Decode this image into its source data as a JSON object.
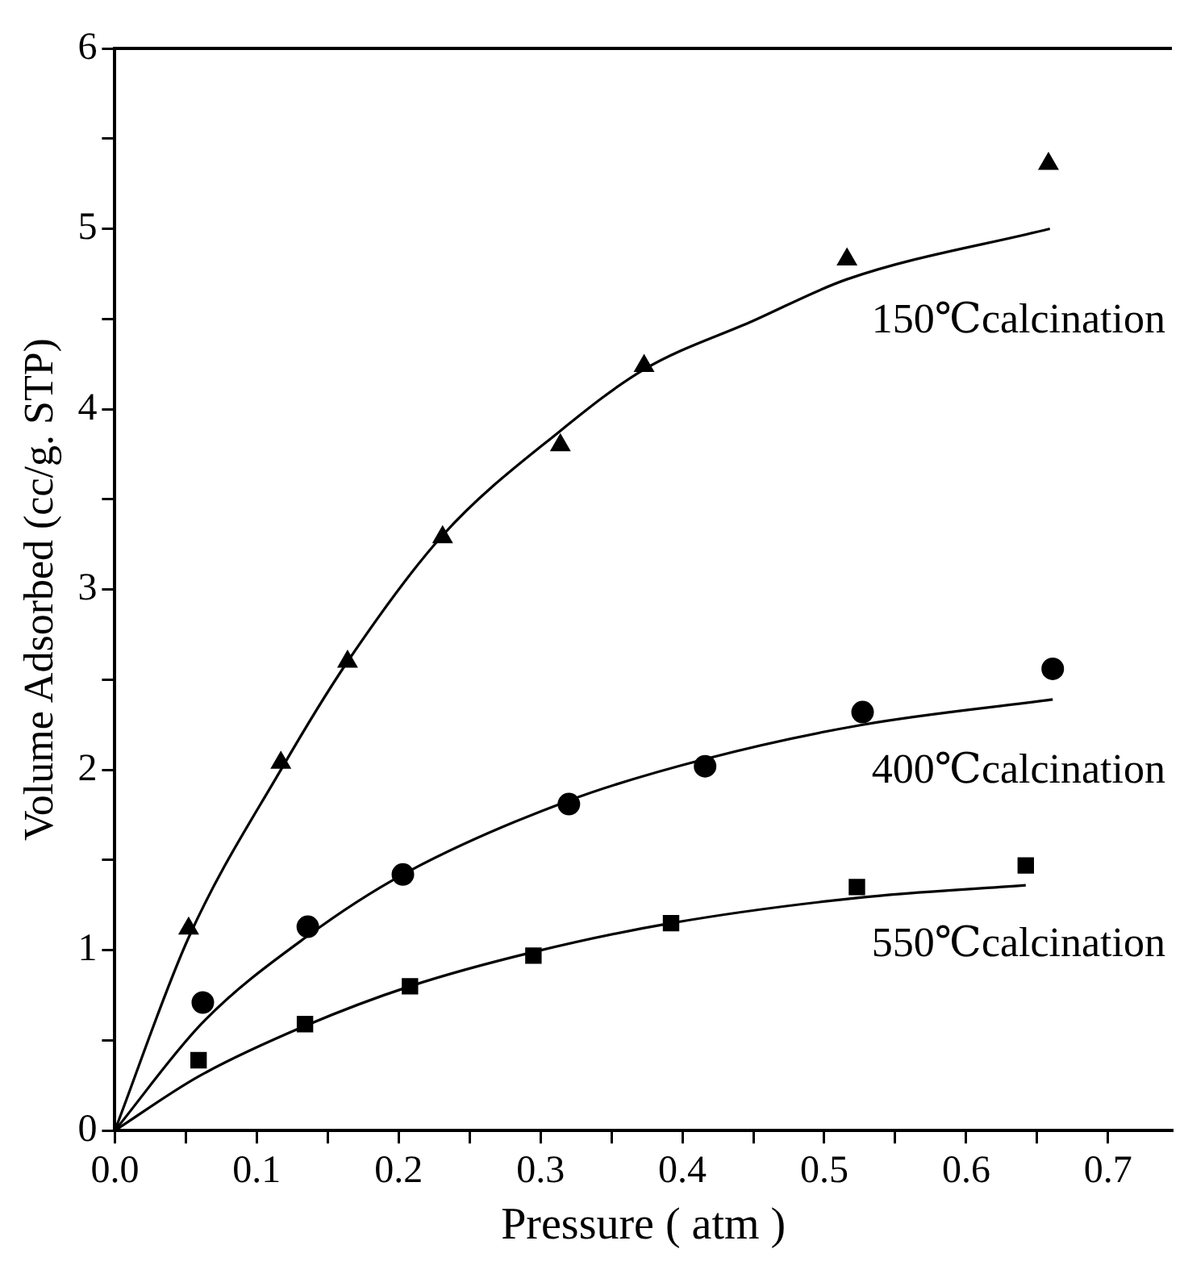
{
  "chart_data": {
    "type": "scatter",
    "xlabel": "Pressure ( atm )",
    "ylabel": "Volume Adsorbed (cc/g. STP)",
    "xlim": [
      0,
      0.745
    ],
    "ylim": [
      0,
      6
    ],
    "xticks": [
      {
        "value": 0,
        "label": "0.0"
      },
      {
        "value": 0.05,
        "label": null
      },
      0.1,
      {
        "value": 0.15,
        "label": null
      },
      0.2,
      {
        "value": 0.25,
        "label": null
      },
      0.3,
      {
        "value": 0.35,
        "label": null
      },
      0.4,
      {
        "value": 0.45,
        "label": null
      },
      0.5,
      {
        "value": 0.55,
        "label": null
      },
      0.6,
      {
        "value": 0.65,
        "label": null
      },
      0.7
    ],
    "yticks": [
      0,
      {
        "value": 0.5,
        "label": null
      },
      1,
      {
        "value": 1.5,
        "label": null
      },
      2,
      {
        "value": 2.5,
        "label": null
      },
      3,
      {
        "value": 3.5,
        "label": null
      },
      4,
      {
        "value": 4.5,
        "label": null
      },
      5,
      {
        "value": 5.5,
        "label": null
      },
      6
    ],
    "grid": false,
    "legend": false,
    "series": [
      {
        "marker": "triangle",
        "color": "#000000",
        "x": [
          0.052,
          0.117,
          0.164,
          0.231,
          0.314,
          0.373,
          0.516,
          0.658
        ],
        "values": [
          1.12,
          2.04,
          2.6,
          3.29,
          3.8,
          4.24,
          4.83,
          5.36
        ]
      },
      {
        "marker": "circle",
        "color": "#000000",
        "x": [
          0.062,
          0.136,
          0.203,
          0.32,
          0.416,
          0.527,
          0.661
        ],
        "values": [
          0.71,
          1.13,
          1.42,
          1.81,
          2.02,
          2.32,
          2.56
        ]
      },
      {
        "marker": "square",
        "color": "#000000",
        "x": [
          0.059,
          0.134,
          0.208,
          0.295,
          0.392,
          0.523,
          0.642
        ],
        "values": [
          0.39,
          0.59,
          0.8,
          0.97,
          1.15,
          1.35,
          1.47
        ]
      },
      {
        "type": "line",
        "marker": "none",
        "color": "#000000",
        "x": [
          0,
          0.052,
          0.117,
          0.164,
          0.231,
          0.314,
          0.373,
          0.45,
          0.516,
          0.659
        ],
        "values": [
          0,
          1.07,
          2.0,
          2.6,
          3.3,
          3.88,
          4.22,
          4.49,
          4.72,
          5.0
        ]
      },
      {
        "type": "line",
        "marker": "none",
        "color": "#000000",
        "x": [
          0,
          0.062,
          0.136,
          0.203,
          0.32,
          0.416,
          0.527,
          0.661
        ],
        "values": [
          0,
          0.6,
          1.08,
          1.42,
          1.83,
          2.06,
          2.25,
          2.39
        ]
      },
      {
        "type": "line",
        "marker": "none",
        "color": "#000000",
        "x": [
          0,
          0.059,
          0.134,
          0.208,
          0.295,
          0.392,
          0.523,
          0.642
        ],
        "values": [
          0,
          0.3,
          0.58,
          0.8,
          0.99,
          1.15,
          1.29,
          1.36
        ]
      }
    ],
    "annotations": [
      "150℃calcination",
      "400℃calcination",
      "550℃calcination"
    ]
  }
}
